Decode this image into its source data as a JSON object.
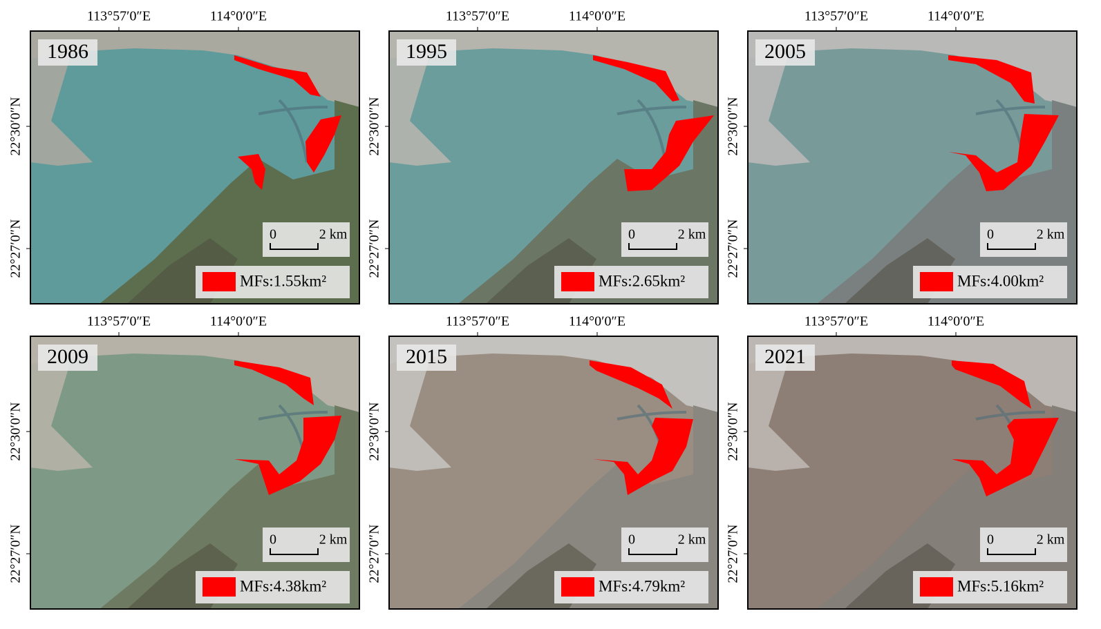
{
  "lon_labels": [
    "113°57′0″E",
    "114°0′0″E"
  ],
  "lat_labels": [
    "22°30′0″N",
    "22°27′0″N"
  ],
  "scale_labels": [
    "0",
    "2 km"
  ],
  "panels": [
    {
      "year": "1986",
      "area": "MFs:1.55km²"
    },
    {
      "year": "1995",
      "area": "MFs:2.65km²"
    },
    {
      "year": "2005",
      "area": "MFs:4.00km²"
    },
    {
      "year": "2009",
      "area": "MFs:4.38km²"
    },
    {
      "year": "2015",
      "area": "MFs:4.79km²"
    },
    {
      "year": "2021",
      "area": "MFs:5.16km²"
    }
  ]
}
